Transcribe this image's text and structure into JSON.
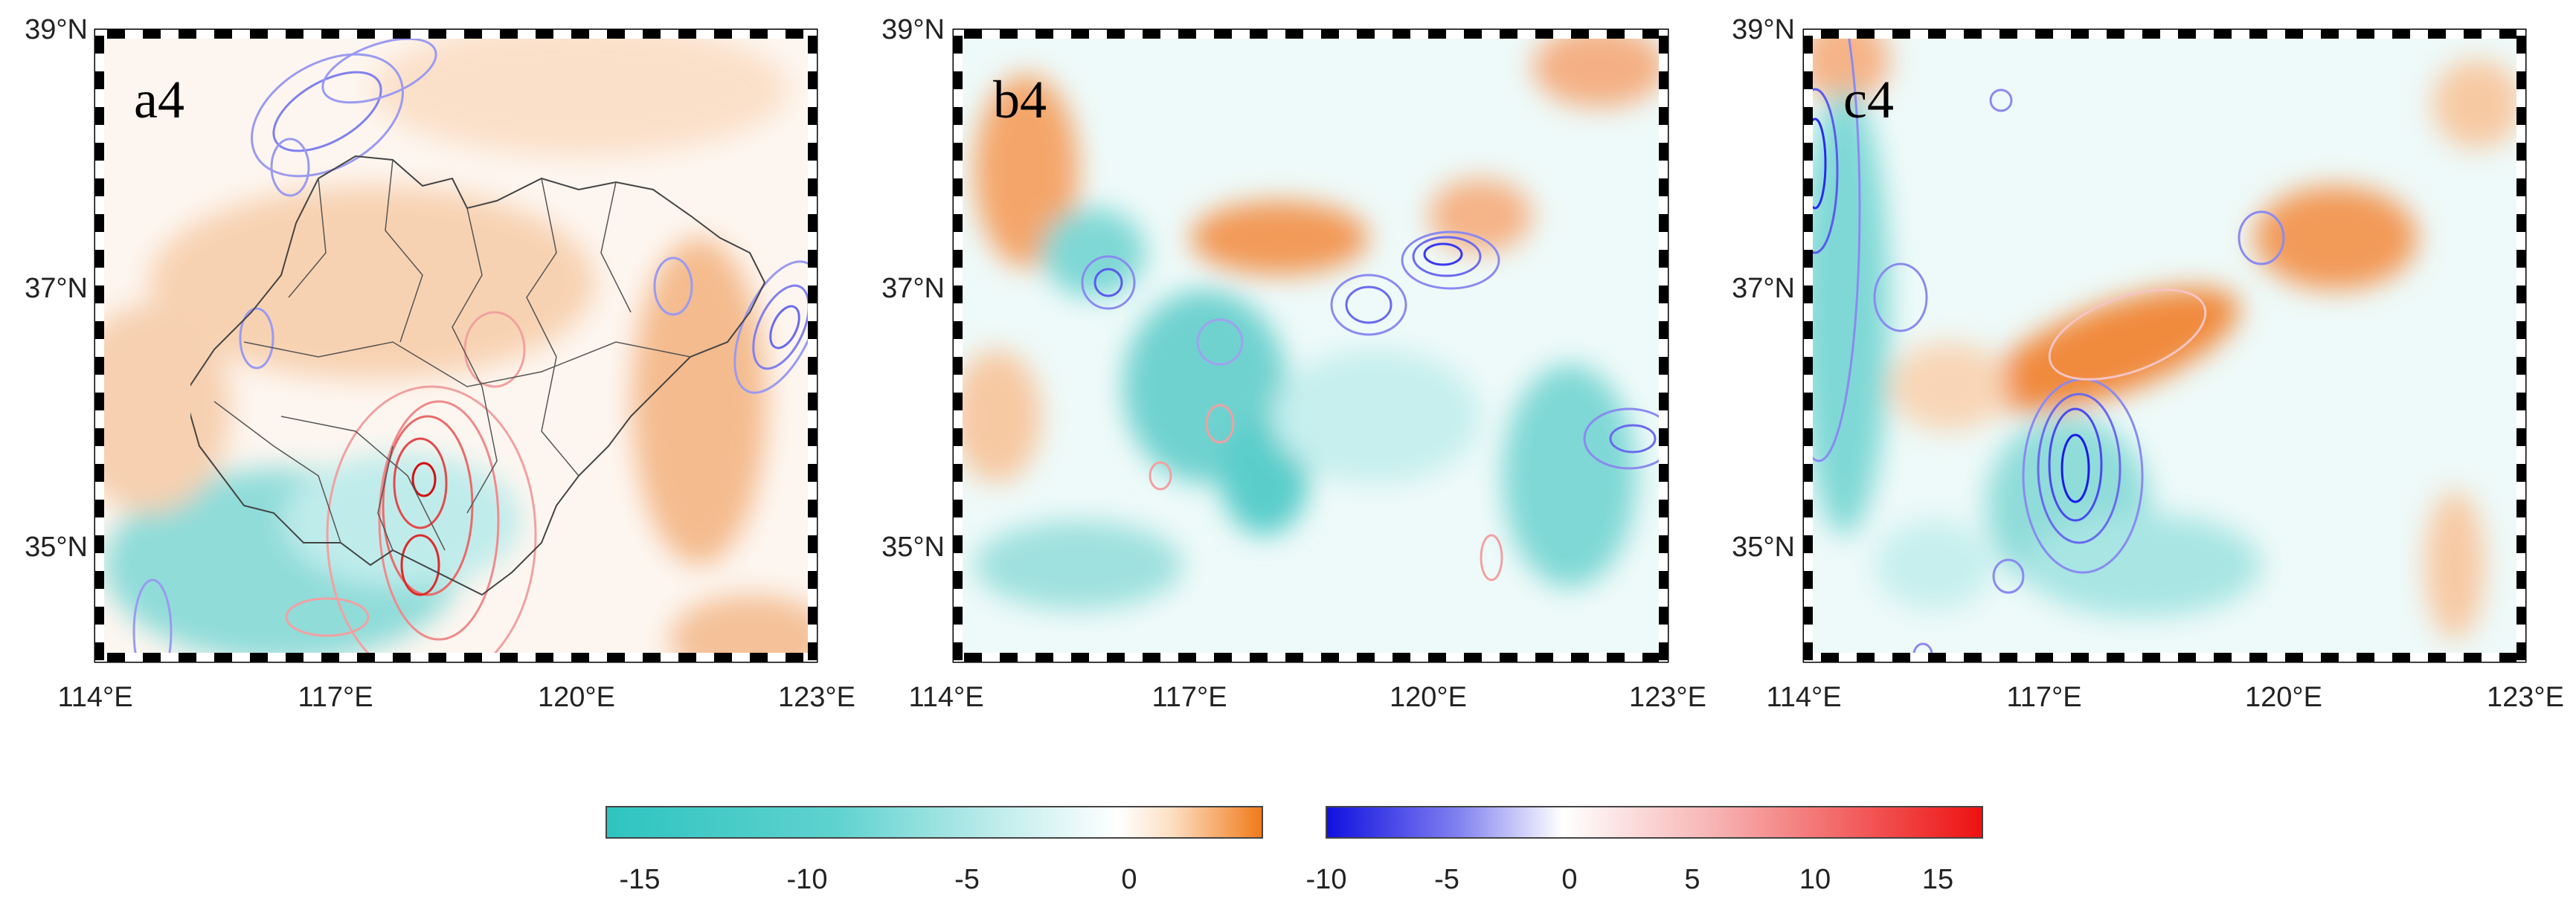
{
  "panels": [
    {
      "label": "a4"
    },
    {
      "label": "b4"
    },
    {
      "label": "c4"
    }
  ],
  "axes": {
    "lat_labels": [
      "39°N",
      "37°N",
      "35°N"
    ],
    "lon_labels": [
      "114°E",
      "117°E",
      "120°E",
      "123°E"
    ]
  },
  "colorbars": [
    {
      "name": "shading",
      "ticks": [
        "-15",
        "-10",
        "-5",
        "0"
      ],
      "colors": [
        "#2ec4c0",
        "#ffffff",
        "#f07a1a"
      ]
    },
    {
      "name": "contours",
      "ticks": [
        "-10",
        "-5",
        "0",
        "5",
        "10",
        "15"
      ],
      "colors": [
        "#1010e0",
        "#ffffff",
        "#ee1111"
      ]
    }
  ],
  "colors": {
    "negative_fill": "#45cbc8",
    "positive_fill": "#f28a3c",
    "negative_contour": "#5555ee",
    "positive_contour": "#ee4444",
    "boundary": "#444444"
  }
}
